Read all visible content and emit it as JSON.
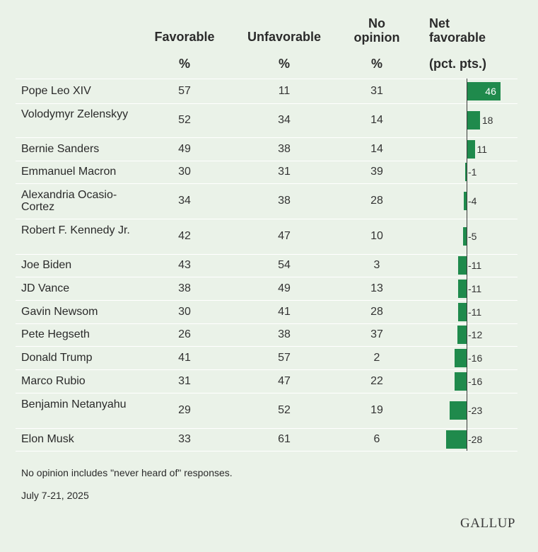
{
  "headers": {
    "favorable": "Favorable",
    "favorable_unit": "%",
    "unfavorable": "Unfavorable",
    "unfavorable_unit": "%",
    "no_opinion_line1": "No",
    "no_opinion_line2": "opinion",
    "no_opinion_unit": "%",
    "net_line1": "Net",
    "net_line2": "favorable",
    "net_unit": "(pct. pts.)"
  },
  "chart_data": {
    "type": "table",
    "columns": [
      "Favorable",
      "Unfavorable",
      "No opinion",
      "Net favorable"
    ],
    "rows": [
      {
        "name": "Pope Leo XIV",
        "favorable": 57,
        "unfavorable": 11,
        "no_opinion": 31,
        "net": 46
      },
      {
        "name": "Volodymyr Zelenskyy",
        "favorable": 52,
        "unfavorable": 34,
        "no_opinion": 14,
        "net": 18
      },
      {
        "name": "Bernie Sanders",
        "favorable": 49,
        "unfavorable": 38,
        "no_opinion": 14,
        "net": 11
      },
      {
        "name": "Emmanuel Macron",
        "favorable": 30,
        "unfavorable": 31,
        "no_opinion": 39,
        "net": -1
      },
      {
        "name": "Alexandria Ocasio-Cortez",
        "favorable": 34,
        "unfavorable": 38,
        "no_opinion": 28,
        "net": -4
      },
      {
        "name": "Robert F. Kennedy Jr.",
        "favorable": 42,
        "unfavorable": 47,
        "no_opinion": 10,
        "net": -5
      },
      {
        "name": "Joe Biden",
        "favorable": 43,
        "unfavorable": 54,
        "no_opinion": 3,
        "net": -11
      },
      {
        "name": "JD Vance",
        "favorable": 38,
        "unfavorable": 49,
        "no_opinion": 13,
        "net": -11
      },
      {
        "name": "Gavin Newsom",
        "favorable": 30,
        "unfavorable": 41,
        "no_opinion": 28,
        "net": -11
      },
      {
        "name": "Pete Hegseth",
        "favorable": 26,
        "unfavorable": 38,
        "no_opinion": 37,
        "net": -12
      },
      {
        "name": "Donald Trump",
        "favorable": 41,
        "unfavorable": 57,
        "no_opinion": 2,
        "net": -16
      },
      {
        "name": "Marco Rubio",
        "favorable": 31,
        "unfavorable": 47,
        "no_opinion": 22,
        "net": -16
      },
      {
        "name": "Benjamin Netanyahu",
        "favorable": 29,
        "unfavorable": 52,
        "no_opinion": 19,
        "net": -23
      },
      {
        "name": "Elon Musk",
        "favorable": 33,
        "unfavorable": 61,
        "no_opinion": 6,
        "net": -28
      }
    ],
    "bar_color": "#1f8a4c"
  },
  "footnote": "No opinion includes \"never heard of\" responses.",
  "date": "July 7-21, 2025",
  "logo": "GALLUP"
}
